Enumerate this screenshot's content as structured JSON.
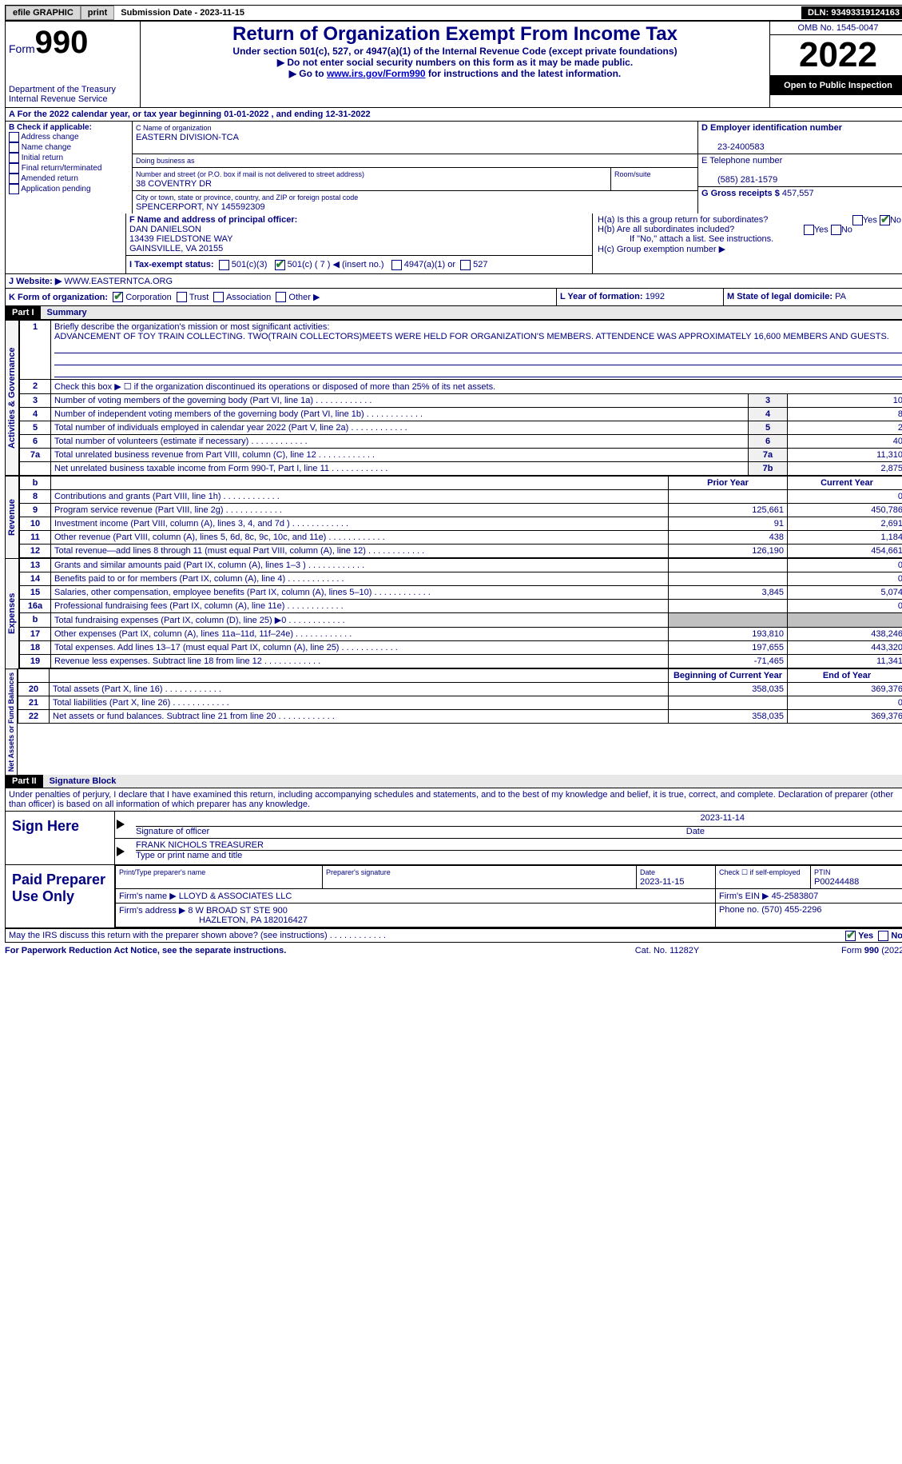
{
  "topbar": {
    "efile": "efile GRAPHIC",
    "print": "print",
    "subdate_lbl": "Submission Date - ",
    "subdate": "2023-11-15",
    "dln_lbl": "DLN: ",
    "dln": "93493319124163"
  },
  "header": {
    "form_lbl": "Form",
    "form_no": "990",
    "dept": "Department of the Treasury",
    "irs": "Internal Revenue Service",
    "title": "Return of Organization Exempt From Income Tax",
    "sub1": "Under section 501(c), 527, or 4947(a)(1) of the Internal Revenue Code (except private foundations)",
    "sub2": "▶ Do not enter social security numbers on this form as it may be made public.",
    "sub3_pre": "▶ Go to ",
    "sub3_link": "www.irs.gov/Form990",
    "sub3_post": " for instructions and the latest information.",
    "omb": "OMB No. 1545-0047",
    "year": "2022",
    "open": "Open to Public Inspection"
  },
  "a": {
    "line": "A For the 2022 calendar year, or tax year beginning ",
    "begin": "01-01-2022",
    "mid": " , and ending ",
    "end": "12-31-2022"
  },
  "b": {
    "hdr": "B Check if applicable:",
    "items": [
      "Address change",
      "Name change",
      "Initial return",
      "Final return/terminated",
      "Amended return",
      "Application pending"
    ]
  },
  "c": {
    "name_lbl": "C Name of organization",
    "name": "EASTERN DIVISION-TCA",
    "dba_lbl": "Doing business as",
    "street_lbl": "Number and street (or P.O. box if mail is not delivered to street address)",
    "room_lbl": "Room/suite",
    "street": "38 COVENTRY DR",
    "city_lbl": "City or town, state or province, country, and ZIP or foreign postal code",
    "city": "SPENCERPORT, NY  145592309"
  },
  "d": {
    "lbl": "D Employer identification number",
    "val": "23-2400583"
  },
  "e": {
    "lbl": "E Telephone number",
    "val": "(585) 281-1579"
  },
  "g": {
    "lbl": "G Gross receipts $ ",
    "val": "457,557"
  },
  "f": {
    "lbl": "F Name and address of principal officer:",
    "name": "DAN DANIELSON",
    "addr1": "13439 FIELDSTONE WAY",
    "addr2": "GAINSVILLE, VA  20155"
  },
  "h": {
    "a": "H(a)  Is this a group return for subordinates?",
    "b": "H(b)  Are all subordinates included?",
    "bnote": "If \"No,\" attach a list. See instructions.",
    "c": "H(c)  Group exemption number ▶",
    "yes": "Yes",
    "no": "No"
  },
  "i": {
    "lbl": "I   Tax-exempt status:",
    "o1": "501(c)(3)",
    "o2": "501(c) ( 7 ) ◀ (insert no.)",
    "o3": "4947(a)(1) or",
    "o4": "527"
  },
  "j": {
    "lbl": "J   Website: ▶",
    "val": "WWW.EASTERNTCA.ORG"
  },
  "k": {
    "lbl": "K Form of organization:",
    "o1": "Corporation",
    "o2": "Trust",
    "o3": "Association",
    "o4": "Other ▶"
  },
  "l": {
    "lbl": "L Year of formation: ",
    "val": "1992"
  },
  "m": {
    "lbl": "M State of legal domicile: ",
    "val": "PA"
  },
  "part1": {
    "hdr": "Part I",
    "title": "Summary"
  },
  "p1": {
    "l1": "Briefly describe the organization's mission or most significant activities:",
    "l1v": "ADVANCEMENT OF TOY TRAIN COLLECTING. TWO(TRAIN COLLECTORS)MEETS WERE HELD FOR ORGANIZATION'S MEMBERS. ATTENDENCE WAS APPROXIMATELY 16,600 MEMBERS AND GUESTS.",
    "l2": "Check this box ▶ ☐ if the organization discontinued its operations or disposed of more than 25% of its net assets.",
    "rows_gov": [
      {
        "n": "3",
        "t": "Number of voting members of the governing body (Part VI, line 1a)",
        "rn": "3",
        "v": "10"
      },
      {
        "n": "4",
        "t": "Number of independent voting members of the governing body (Part VI, line 1b)",
        "rn": "4",
        "v": "8"
      },
      {
        "n": "5",
        "t": "Total number of individuals employed in calendar year 2022 (Part V, line 2a)",
        "rn": "5",
        "v": "2"
      },
      {
        "n": "6",
        "t": "Total number of volunteers (estimate if necessary)",
        "rn": "6",
        "v": "40"
      },
      {
        "n": "7a",
        "t": "Total unrelated business revenue from Part VIII, column (C), line 12",
        "rn": "7a",
        "v": "11,310"
      },
      {
        "n": "",
        "t": "Net unrelated business taxable income from Form 990-T, Part I, line 11",
        "rn": "7b",
        "v": "2,875"
      }
    ],
    "b_hdr": "b",
    "py": "Prior Year",
    "cy": "Current Year",
    "rows_rev": [
      {
        "n": "8",
        "t": "Contributions and grants (Part VIII, line 1h)",
        "py": "",
        "cy": "0"
      },
      {
        "n": "9",
        "t": "Program service revenue (Part VIII, line 2g)",
        "py": "125,661",
        "cy": "450,786"
      },
      {
        "n": "10",
        "t": "Investment income (Part VIII, column (A), lines 3, 4, and 7d )",
        "py": "91",
        "cy": "2,691"
      },
      {
        "n": "11",
        "t": "Other revenue (Part VIII, column (A), lines 5, 6d, 8c, 9c, 10c, and 11e)",
        "py": "438",
        "cy": "1,184"
      },
      {
        "n": "12",
        "t": "Total revenue—add lines 8 through 11 (must equal Part VIII, column (A), line 12)",
        "py": "126,190",
        "cy": "454,661"
      }
    ],
    "rows_exp": [
      {
        "n": "13",
        "t": "Grants and similar amounts paid (Part IX, column (A), lines 1–3 )",
        "py": "",
        "cy": "0"
      },
      {
        "n": "14",
        "t": "Benefits paid to or for members (Part IX, column (A), line 4)",
        "py": "",
        "cy": "0"
      },
      {
        "n": "15",
        "t": "Salaries, other compensation, employee benefits (Part IX, column (A), lines 5–10)",
        "py": "3,845",
        "cy": "5,074"
      },
      {
        "n": "16a",
        "t": "Professional fundraising fees (Part IX, column (A), line 11e)",
        "py": "",
        "cy": "0"
      },
      {
        "n": "b",
        "t": "Total fundraising expenses (Part IX, column (D), line 25) ▶0",
        "py": "shade",
        "cy": "shade"
      },
      {
        "n": "17",
        "t": "Other expenses (Part IX, column (A), lines 11a–11d, 11f–24e)",
        "py": "193,810",
        "cy": "438,246"
      },
      {
        "n": "18",
        "t": "Total expenses. Add lines 13–17 (must equal Part IX, column (A), line 25)",
        "py": "197,655",
        "cy": "443,320"
      },
      {
        "n": "19",
        "t": "Revenue less expenses. Subtract line 18 from line 12",
        "py": "-71,465",
        "cy": "11,341"
      }
    ],
    "boy": "Beginning of Current Year",
    "eoy": "End of Year",
    "rows_na": [
      {
        "n": "20",
        "t": "Total assets (Part X, line 16)",
        "py": "358,035",
        "cy": "369,376"
      },
      {
        "n": "21",
        "t": "Total liabilities (Part X, line 26)",
        "py": "",
        "cy": "0"
      },
      {
        "n": "22",
        "t": "Net assets or fund balances. Subtract line 21 from line 20",
        "py": "358,035",
        "cy": "369,376"
      }
    ],
    "vlabels": {
      "gov": "Activities & Governance",
      "rev": "Revenue",
      "exp": "Expenses",
      "na": "Net Assets or Fund Balances"
    }
  },
  "part2": {
    "hdr": "Part II",
    "title": "Signature Block"
  },
  "sig": {
    "decl": "Under penalties of perjury, I declare that I have examined this return, including accompanying schedules and statements, and to the best of my knowledge and belief, it is true, correct, and complete. Declaration of preparer (other than officer) is based on all information of which preparer has any knowledge.",
    "here": "Sign Here",
    "off_sig": "Signature of officer",
    "date": "Date",
    "sig_date": "2023-11-14",
    "off_name": "FRANK NICHOLS  TREASURER",
    "off_type": "Type or print name and title",
    "paid": "Paid Preparer Use Only",
    "prep_name_lbl": "Print/Type preparer's name",
    "prep_sig_lbl": "Preparer's signature",
    "prep_date_lbl": "Date",
    "prep_date": "2023-11-15",
    "check_lbl": "Check ☐ if self-employed",
    "ptin_lbl": "PTIN",
    "ptin": "P00244488",
    "firm_name_lbl": "Firm's name    ▶ ",
    "firm_name": "LLOYD & ASSOCIATES LLC",
    "firm_ein_lbl": "Firm's EIN ▶ ",
    "firm_ein": "45-2583807",
    "firm_addr_lbl": "Firm's address ▶ ",
    "firm_addr1": "8 W BROAD ST STE 900",
    "firm_addr2": "HAZLETON, PA  182016427",
    "phone_lbl": "Phone no. ",
    "phone": "(570) 455-2296",
    "discuss": "May the IRS discuss this return with the preparer shown above? (see instructions)",
    "yes": "Yes",
    "no": "No"
  },
  "footer": {
    "l": "For Paperwork Reduction Act Notice, see the separate instructions.",
    "m": "Cat. No. 11282Y",
    "r": "Form 990 (2022)"
  }
}
